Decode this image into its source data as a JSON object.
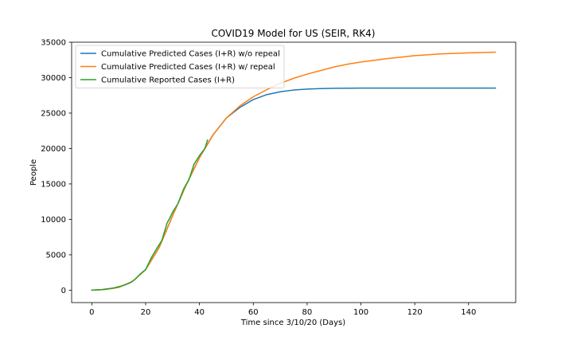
{
  "chart_data": {
    "type": "line",
    "title": "COVID19 Model for US (SEIR, RK4)",
    "xlabel": "Time since 3/10/20 (Days)",
    "ylabel": "People",
    "xlim": [
      -7.5,
      157.5
    ],
    "ylim": [
      -1750,
      35000
    ],
    "xticks": [
      0,
      20,
      40,
      60,
      80,
      100,
      120,
      140
    ],
    "yticks": [
      0,
      5000,
      10000,
      15000,
      20000,
      25000,
      30000,
      35000
    ],
    "grid": false,
    "legend_position": "top-left",
    "series": [
      {
        "name": "Cumulative Predicted Cases (I+R) w/o repeal",
        "color": "#1f77b4",
        "x": [
          0,
          5,
          10,
          15,
          20,
          25,
          30,
          35,
          40,
          45,
          50,
          55,
          60,
          65,
          70,
          75,
          80,
          85,
          90,
          95,
          100,
          110,
          120,
          130,
          140,
          150
        ],
        "y": [
          0,
          100,
          400,
          1200,
          2900,
          6000,
          10500,
          14800,
          18700,
          21900,
          24300,
          25800,
          26900,
          27600,
          28000,
          28250,
          28380,
          28450,
          28490,
          28510,
          28520,
          28530,
          28530,
          28530,
          28530,
          28530
        ]
      },
      {
        "name": "Cumulative Predicted Cases (I+R) w/ repeal",
        "color": "#ff7f0e",
        "x": [
          0,
          5,
          10,
          15,
          20,
          25,
          30,
          35,
          40,
          45,
          50,
          55,
          60,
          65,
          70,
          75,
          80,
          85,
          90,
          95,
          100,
          110,
          120,
          130,
          140,
          150
        ],
        "y": [
          0,
          100,
          400,
          1200,
          2900,
          6000,
          10500,
          14800,
          18700,
          21900,
          24300,
          26000,
          27300,
          28300,
          29200,
          29900,
          30500,
          31000,
          31500,
          31900,
          32200,
          32700,
          33100,
          33350,
          33500,
          33600
        ]
      },
      {
        "name": "Cumulative Reported Cases (I+R)",
        "color": "#2ca02c",
        "x": [
          0,
          2,
          4,
          6,
          8,
          10,
          12,
          14,
          16,
          18,
          20,
          22,
          24,
          26,
          28,
          29,
          30,
          32,
          34,
          35,
          36,
          38,
          40,
          42,
          43
        ],
        "y": [
          0,
          50,
          100,
          200,
          300,
          500,
          700,
          1000,
          1500,
          2300,
          2900,
          4500,
          5800,
          7000,
          9500,
          10200,
          11000,
          12200,
          14200,
          14900,
          15500,
          17800,
          19000,
          20000,
          21200
        ]
      }
    ]
  }
}
